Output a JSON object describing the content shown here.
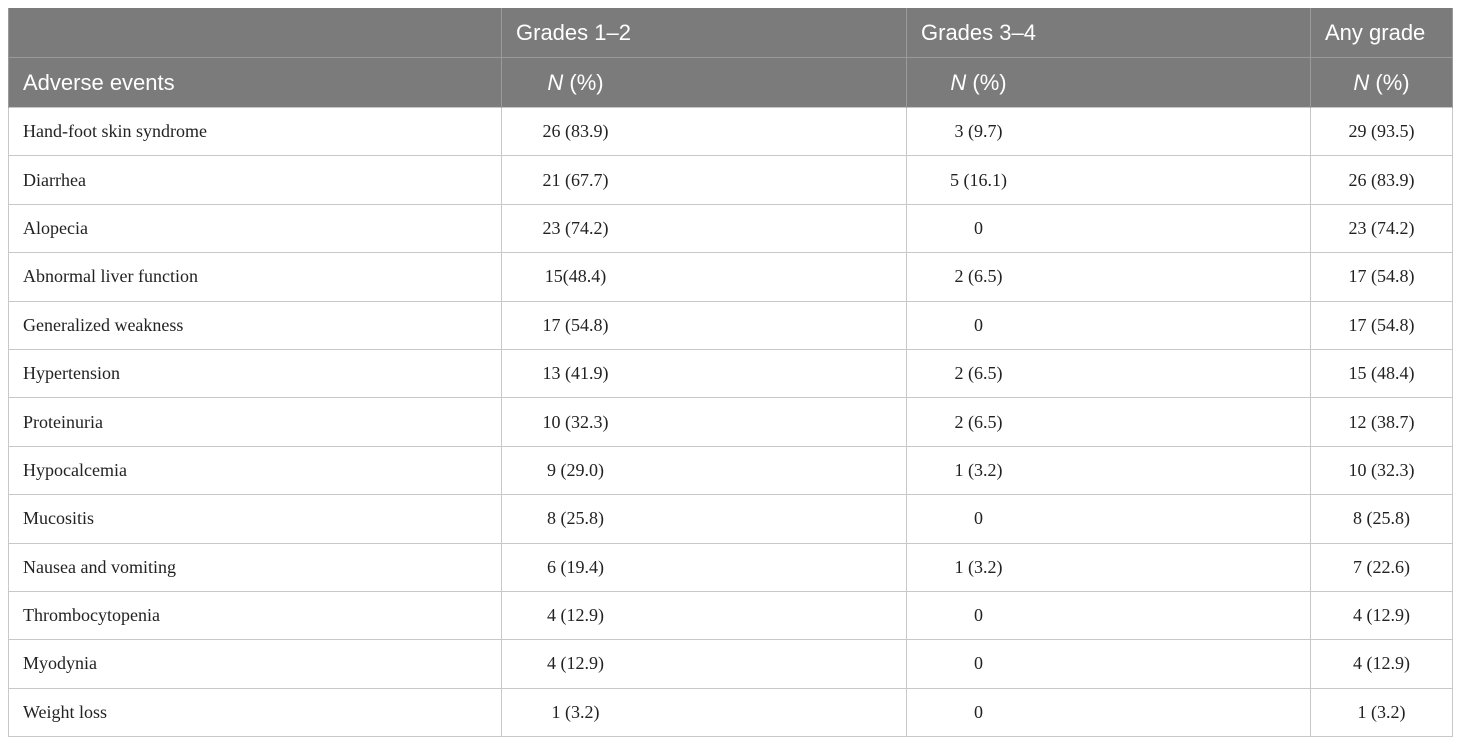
{
  "table": {
    "header": {
      "groups": [
        "Grades 1–2",
        "Grades 3–4",
        "Any grade"
      ],
      "first_column": "Adverse events",
      "unit": {
        "symbol": "N",
        "text": "(%)"
      }
    },
    "rows": [
      [
        "Hand-foot skin syndrome",
        "26 (83.9)",
        "3 (9.7)",
        "29 (93.5)"
      ],
      [
        "Diarrhea",
        "21 (67.7)",
        "5 (16.1)",
        "26 (83.9)"
      ],
      [
        "Alopecia",
        "23 (74.2)",
        "0",
        "23 (74.2)"
      ],
      [
        "Abnormal liver function",
        "15(48.4)",
        "2 (6.5)",
        "17 (54.8)"
      ],
      [
        "Generalized weakness",
        "17 (54.8)",
        "0",
        "17 (54.8)"
      ],
      [
        "Hypertension",
        "13 (41.9)",
        "2 (6.5)",
        "15 (48.4)"
      ],
      [
        "Proteinuria",
        "10 (32.3)",
        "2 (6.5)",
        "12 (38.7)"
      ],
      [
        "Hypocalcemia",
        "9 (29.0)",
        "1 (3.2)",
        "10 (32.3)"
      ],
      [
        "Mucositis",
        "8 (25.8)",
        "0",
        "8 (25.8)"
      ],
      [
        "Nausea and vomiting",
        "6 (19.4)",
        "1 (3.2)",
        "7 (22.6)"
      ],
      [
        "Thrombocytopenia",
        "4 (12.9)",
        "0",
        "4 (12.9)"
      ],
      [
        "Myodynia",
        "4 (12.9)",
        "0",
        "4 (12.9)"
      ],
      [
        "Weight loss",
        "1 (3.2)",
        "0",
        "1 (3.2)"
      ]
    ]
  }
}
